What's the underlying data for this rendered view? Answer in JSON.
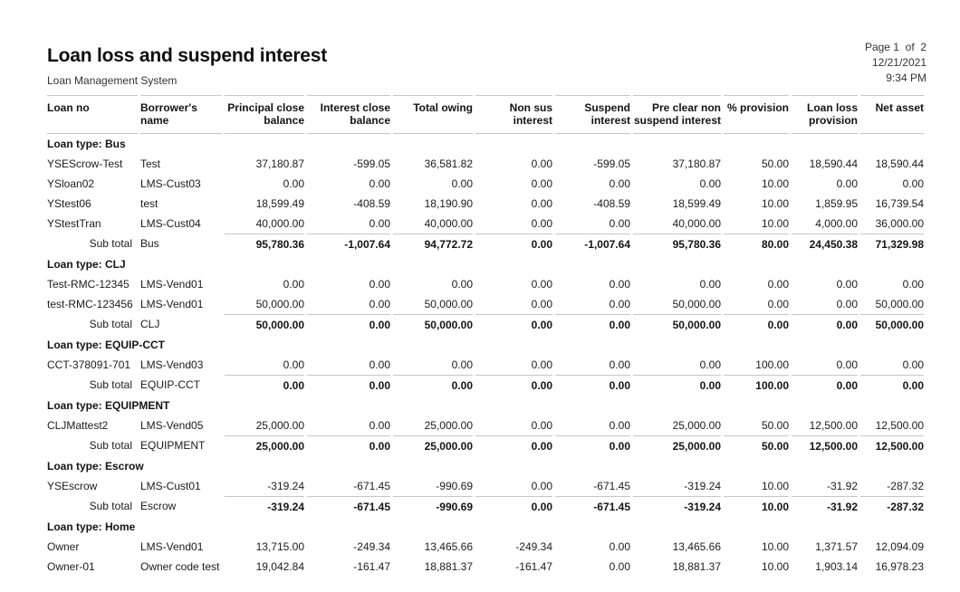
{
  "report": {
    "title": "Loan loss and suspend interest",
    "subtitle": "Loan Management System",
    "page_label": "Page 1  of  2",
    "date": "12/21/2021",
    "time": "9:34 PM"
  },
  "table": {
    "columns": [
      "Loan no",
      "Borrower's name",
      "Principal close balance",
      "Interest close balance",
      "Total owing",
      "Non sus interest",
      "Suspend interest",
      "Pre clear non suspend interest",
      "% provision",
      "Loan loss provision",
      "Net asset"
    ],
    "subtotal_label": "Sub total",
    "groups": [
      {
        "type_label": "Loan type: Bus",
        "loan_type": "Bus",
        "rows": [
          {
            "loan_no": "YSEScrow-Test",
            "borrower": "Test",
            "values": [
              "37,180.87",
              "-599.05",
              "36,581.82",
              "0.00",
              "-599.05",
              "37,180.87",
              "50.00",
              "18,590.44",
              "18,590.44"
            ]
          },
          {
            "loan_no": "YSloan02",
            "borrower": "LMS-Cust03",
            "values": [
              "0.00",
              "0.00",
              "0.00",
              "0.00",
              "0.00",
              "0.00",
              "10.00",
              "0.00",
              "0.00"
            ]
          },
          {
            "loan_no": "YStest06",
            "borrower": "test",
            "values": [
              "18,599.49",
              "-408.59",
              "18,190.90",
              "0.00",
              "-408.59",
              "18,599.49",
              "10.00",
              "1,859.95",
              "16,739.54"
            ]
          },
          {
            "loan_no": "YStestTran",
            "borrower": "LMS-Cust04",
            "values": [
              "40,000.00",
              "0.00",
              "40,000.00",
              "0.00",
              "0.00",
              "40,000.00",
              "10.00",
              "4,000.00",
              "36,000.00"
            ]
          }
        ],
        "subtotal_values": [
          "95,780.36",
          "-1,007.64",
          "94,772.72",
          "0.00",
          "-1,007.64",
          "95,780.36",
          "80.00",
          "24,450.38",
          "71,329.98"
        ]
      },
      {
        "type_label": "Loan type: CLJ",
        "loan_type": "CLJ",
        "rows": [
          {
            "loan_no": "Test-RMC-12345",
            "borrower": "LMS-Vend01",
            "values": [
              "0.00",
              "0.00",
              "0.00",
              "0.00",
              "0.00",
              "0.00",
              "0.00",
              "0.00",
              "0.00"
            ]
          },
          {
            "loan_no": "test-RMC-123456",
            "borrower": "LMS-Vend01",
            "values": [
              "50,000.00",
              "0.00",
              "50,000.00",
              "0.00",
              "0.00",
              "50,000.00",
              "0.00",
              "0.00",
              "50,000.00"
            ]
          }
        ],
        "subtotal_values": [
          "50,000.00",
          "0.00",
          "50,000.00",
          "0.00",
          "0.00",
          "50,000.00",
          "0.00",
          "0.00",
          "50,000.00"
        ]
      },
      {
        "type_label": "Loan type: EQUIP-CCT",
        "loan_type": "EQUIP-CCT",
        "rows": [
          {
            "loan_no": "CCT-378091-701",
            "borrower": "LMS-Vend03",
            "values": [
              "0.00",
              "0.00",
              "0.00",
              "0.00",
              "0.00",
              "0.00",
              "100.00",
              "0.00",
              "0.00"
            ]
          }
        ],
        "subtotal_values": [
          "0.00",
          "0.00",
          "0.00",
          "0.00",
          "0.00",
          "0.00",
          "100.00",
          "0.00",
          "0.00"
        ]
      },
      {
        "type_label": "Loan type: EQUIPMENT",
        "loan_type": "EQUIPMENT",
        "rows": [
          {
            "loan_no": "CLJMattest2",
            "borrower": "LMS-Vend05",
            "values": [
              "25,000.00",
              "0.00",
              "25,000.00",
              "0.00",
              "0.00",
              "25,000.00",
              "50.00",
              "12,500.00",
              "12,500.00"
            ]
          }
        ],
        "subtotal_values": [
          "25,000.00",
          "0.00",
          "25,000.00",
          "0.00",
          "0.00",
          "25,000.00",
          "50.00",
          "12,500.00",
          "12,500.00"
        ]
      },
      {
        "type_label": "Loan type: Escrow",
        "loan_type": "Escrow",
        "rows": [
          {
            "loan_no": "YSEscrow",
            "borrower": "LMS-Cust01",
            "values": [
              "-319.24",
              "-671.45",
              "-990.69",
              "0.00",
              "-671.45",
              "-319.24",
              "10.00",
              "-31.92",
              "-287.32"
            ]
          }
        ],
        "subtotal_values": [
          "-319.24",
          "-671.45",
          "-990.69",
          "0.00",
          "-671.45",
          "-319.24",
          "10.00",
          "-31.92",
          "-287.32"
        ]
      },
      {
        "type_label": "Loan type: Home",
        "loan_type": "Home",
        "rows": [
          {
            "loan_no": "Owner",
            "borrower": "LMS-Vend01",
            "values": [
              "13,715.00",
              "-249.34",
              "13,465.66",
              "-249.34",
              "0.00",
              "13,465.66",
              "10.00",
              "1,371.57",
              "12,094.09"
            ]
          },
          {
            "loan_no": "Owner-01",
            "borrower": "Owner code test",
            "values": [
              "19,042.84",
              "-161.47",
              "18,881.37",
              "-161.47",
              "0.00",
              "18,881.37",
              "10.00",
              "1,903.14",
              "16,978.23"
            ]
          }
        ],
        "subtotal_values": null
      }
    ]
  },
  "colors": {
    "border": "#c6c6c6",
    "text": "#1b1b1b"
  }
}
